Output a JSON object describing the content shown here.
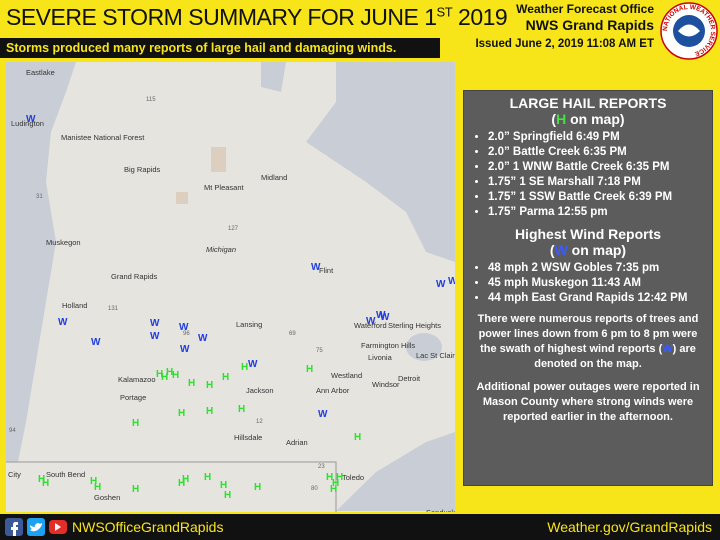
{
  "header": {
    "title_parts": [
      "SEVERE STORM SUMMARY FOR JUNE 1",
      "ST",
      " 2019"
    ],
    "subtitle": "Storms produced many reports of large hail and damaging winds.",
    "office": "Weather Forecast Office",
    "name": "NWS Grand Rapids",
    "issued": "Issued June 2, 2019 11:08 AM ET",
    "logo_text": "NATIONAL WEATHER SERVICE"
  },
  "map": {
    "labels": [
      "Eastlake",
      "Ludington",
      "Manistee National Forest",
      "Big Rapids",
      "Midland",
      "Mt Pleasant",
      "Muskegon",
      "Michigan",
      "Grand Rapids",
      "Flint",
      "Holland",
      "Lansing",
      "Waterford",
      "Sterling Heights",
      "Farmington Hills",
      "Livonia",
      "Detroit",
      "Lac St Clair",
      "Kalamazoo",
      "Portage",
      "Jackson",
      "Ann Arbor",
      "Westland",
      "Windsor",
      "Hillsdale",
      "Adrian",
      "Toledo",
      "South Bend",
      "Goshen",
      "City",
      "Sandusky",
      "115",
      "131",
      "127",
      "31",
      "96",
      "94",
      "69",
      "75",
      "23",
      "12",
      "80"
    ],
    "markers": {
      "hail": "H",
      "wind": "W"
    }
  },
  "panel": {
    "hail_title": "LARGE HAIL REPORTS",
    "hail_key": [
      "(",
      "H",
      " on map)"
    ],
    "hail_reports": [
      "2.0” Springfield 6:49 PM",
      "2.0” Battle Creek 6:35 PM",
      "2.0” 1 WNW Battle Creek 6:35 PM",
      "1.75”  1 SE Marshall 7:18 PM",
      "1.75”  1 SSW Battle Creek 6:39 PM",
      "1.75” Parma 12:55 pm"
    ],
    "wind_title": "Highest Wind Reports",
    "wind_key": [
      "(",
      "W",
      " on map)"
    ],
    "wind_reports": [
      "48 mph 2 WSW Gobles 7:35 pm",
      "45 mph Muskegon 11:43 AM",
      "44 mph East Grand Rapids 12:42 PM"
    ],
    "notes": [
      [
        "There were numerous reports of trees and power lines down from 6 pm to 8 pm were the swath of highest wind reports (",
        "W",
        ") are denoted on the map."
      ],
      [
        "Additional power outages were reported in Mason County where strong winds were reported earlier in the afternoon."
      ]
    ]
  },
  "footer": {
    "social": "NWSOfficeGrandRapids",
    "website": "Weather.gov/GrandRapids"
  }
}
